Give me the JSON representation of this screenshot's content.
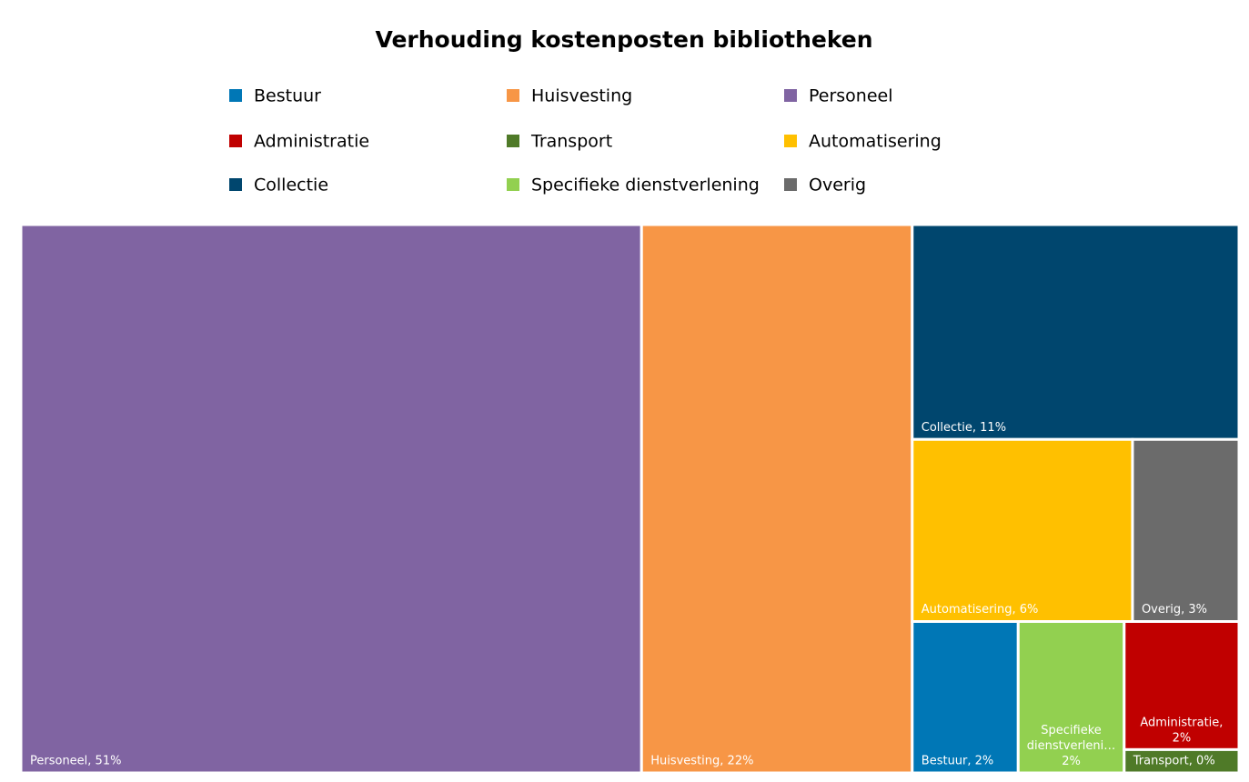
{
  "chart_data": {
    "type": "treemap",
    "title": "Verhouding kostenposten bibliotheken",
    "categories": [
      "Bestuur",
      "Huisvesting",
      "Personeel",
      "Administratie",
      "Transport",
      "Automatisering",
      "Collectie",
      "Specifieke dienstverlening",
      "Overig"
    ],
    "values": [
      2.4,
      22.2,
      50.9,
      2.2,
      0.4,
      6.0,
      10.5,
      2.4,
      2.9
    ],
    "value_labels": [
      "Bestuur, 2%",
      "Huisvesting, 22%",
      "Personeel, 51%",
      "Administratie, 2%",
      "Transport, 0%",
      "Automatisering, 6%",
      "Collectie, 11%",
      "Specifieke dienstverleni… 2%",
      "Overig, 3%"
    ],
    "colors": [
      "#0077b6",
      "#f79646",
      "#8064a2",
      "#c00000",
      "#4f7a28",
      "#ffc000",
      "#00466e",
      "#92d050",
      "#6b6b6b"
    ],
    "legend": "top"
  }
}
